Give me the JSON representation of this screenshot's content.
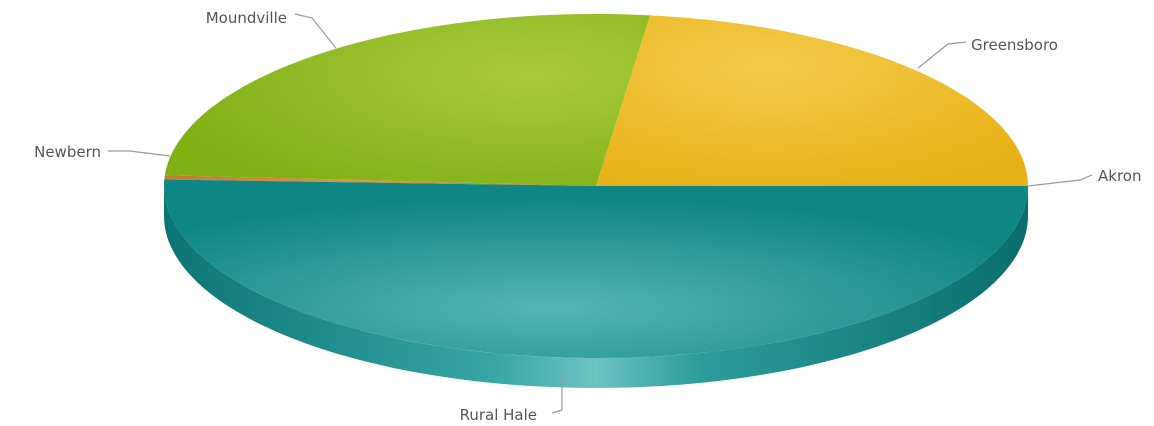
{
  "chart_data": {
    "type": "pie",
    "title": "",
    "three_d": true,
    "start_at": "Akron (3 o'clock), counterclockwise",
    "slices": [
      {
        "name": "Akron",
        "value": 0,
        "color": "#E8B418"
      },
      {
        "name": "Greensboro",
        "value": 23.0,
        "color": "#EEBC22"
      },
      {
        "name": "Moundville",
        "value": 26.0,
        "color": "#96BC2A"
      },
      {
        "name": "Newbern",
        "value": 0.4,
        "color": "#C98A38"
      },
      {
        "name": "Rural Hale",
        "value": 50.6,
        "color": "#1E9A98"
      }
    ]
  }
}
